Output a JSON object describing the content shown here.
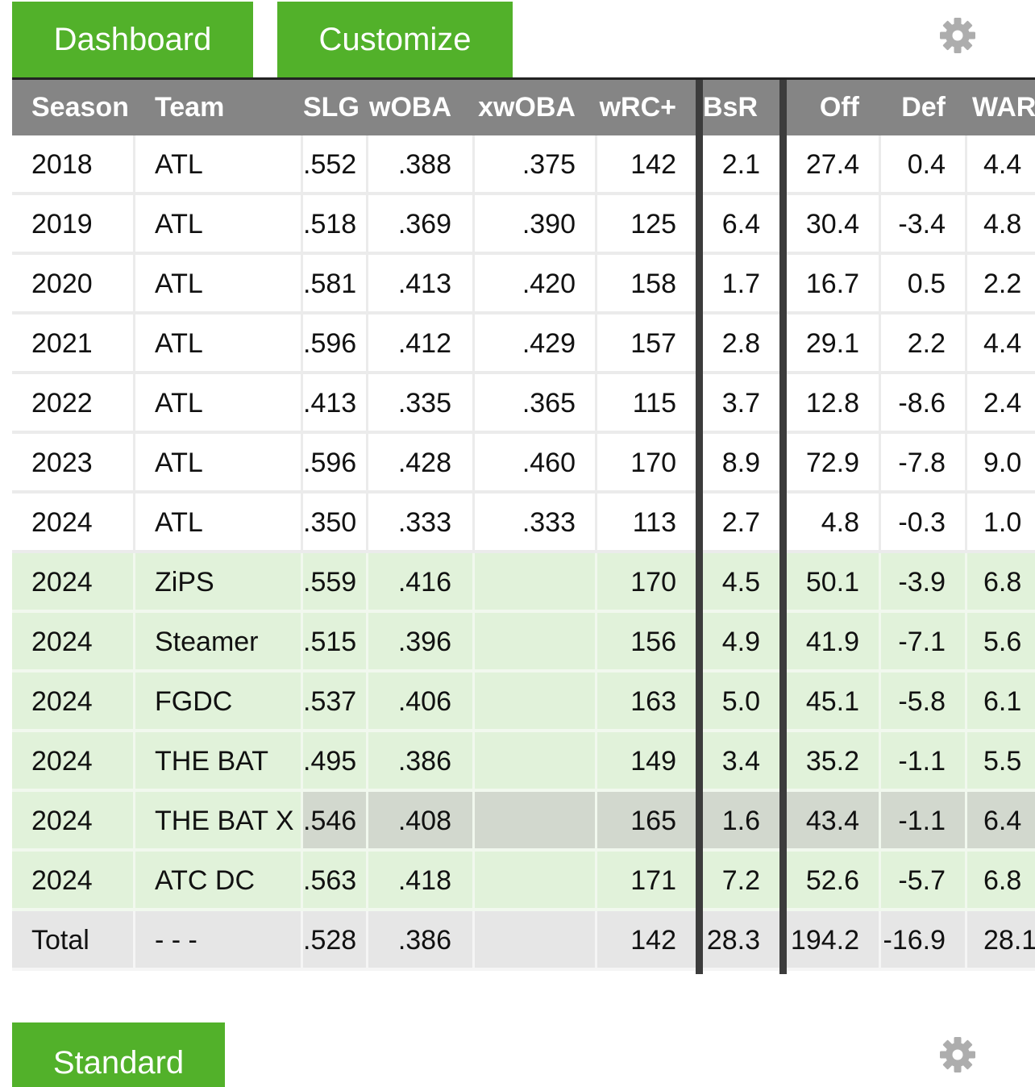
{
  "top_buttons": {
    "dashboard": "Dashboard",
    "customize": "Customize"
  },
  "bottom_buttons": {
    "standard": "Standard"
  },
  "icons": {
    "settings": "gear-icon"
  },
  "colors": {
    "accent_green": "#52b12a",
    "header_gray": "#858585",
    "projection_row": "#e1f2da",
    "highlight_row": "#d2d8ce",
    "total_row": "#e6e6e6",
    "separator": "#3c3c3c"
  },
  "table": {
    "columns": [
      "Season",
      "Team",
      "SLG",
      "wOBA",
      "xwOBA",
      "wRC+",
      "BsR",
      "Off",
      "Def",
      "WAR"
    ],
    "rows": [
      {
        "type": "actual",
        "cells": [
          "2018",
          "ATL",
          ".552",
          ".388",
          ".375",
          "142",
          "2.1",
          "27.4",
          "0.4",
          "4.4"
        ]
      },
      {
        "type": "actual",
        "cells": [
          "2019",
          "ATL",
          ".518",
          ".369",
          ".390",
          "125",
          "6.4",
          "30.4",
          "-3.4",
          "4.8"
        ]
      },
      {
        "type": "actual",
        "cells": [
          "2020",
          "ATL",
          ".581",
          ".413",
          ".420",
          "158",
          "1.7",
          "16.7",
          "0.5",
          "2.2"
        ]
      },
      {
        "type": "actual",
        "cells": [
          "2021",
          "ATL",
          ".596",
          ".412",
          ".429",
          "157",
          "2.8",
          "29.1",
          "2.2",
          "4.4"
        ]
      },
      {
        "type": "actual",
        "cells": [
          "2022",
          "ATL",
          ".413",
          ".335",
          ".365",
          "115",
          "3.7",
          "12.8",
          "-8.6",
          "2.4"
        ]
      },
      {
        "type": "actual",
        "cells": [
          "2023",
          "ATL",
          ".596",
          ".428",
          ".460",
          "170",
          "8.9",
          "72.9",
          "-7.8",
          "9.0"
        ]
      },
      {
        "type": "actual",
        "cells": [
          "2024",
          "ATL",
          ".350",
          ".333",
          ".333",
          "113",
          "2.7",
          "4.8",
          "-0.3",
          "1.0"
        ]
      },
      {
        "type": "projection",
        "cells": [
          "2024",
          "ZiPS",
          ".559",
          ".416",
          "",
          "170",
          "4.5",
          "50.1",
          "-3.9",
          "6.8"
        ]
      },
      {
        "type": "projection",
        "cells": [
          "2024",
          "Steamer",
          ".515",
          ".396",
          "",
          "156",
          "4.9",
          "41.9",
          "-7.1",
          "5.6"
        ]
      },
      {
        "type": "projection",
        "cells": [
          "2024",
          "FGDC",
          ".537",
          ".406",
          "",
          "163",
          "5.0",
          "45.1",
          "-5.8",
          "6.1"
        ]
      },
      {
        "type": "projection",
        "cells": [
          "2024",
          "THE BAT",
          ".495",
          ".386",
          "",
          "149",
          "3.4",
          "35.2",
          "-1.1",
          "5.5"
        ]
      },
      {
        "type": "highlight",
        "cells": [
          "2024",
          "THE BAT X",
          ".546",
          ".408",
          "",
          "165",
          "1.6",
          "43.4",
          "-1.1",
          "6.4"
        ]
      },
      {
        "type": "projection",
        "cells": [
          "2024",
          "ATC DC",
          ".563",
          ".418",
          "",
          "171",
          "7.2",
          "52.6",
          "-5.7",
          "6.8"
        ]
      },
      {
        "type": "total",
        "cells": [
          "Total",
          "- - -",
          ".528",
          ".386",
          "",
          "142",
          "28.3",
          "194.2",
          "-16.9",
          "28.1"
        ]
      }
    ]
  }
}
